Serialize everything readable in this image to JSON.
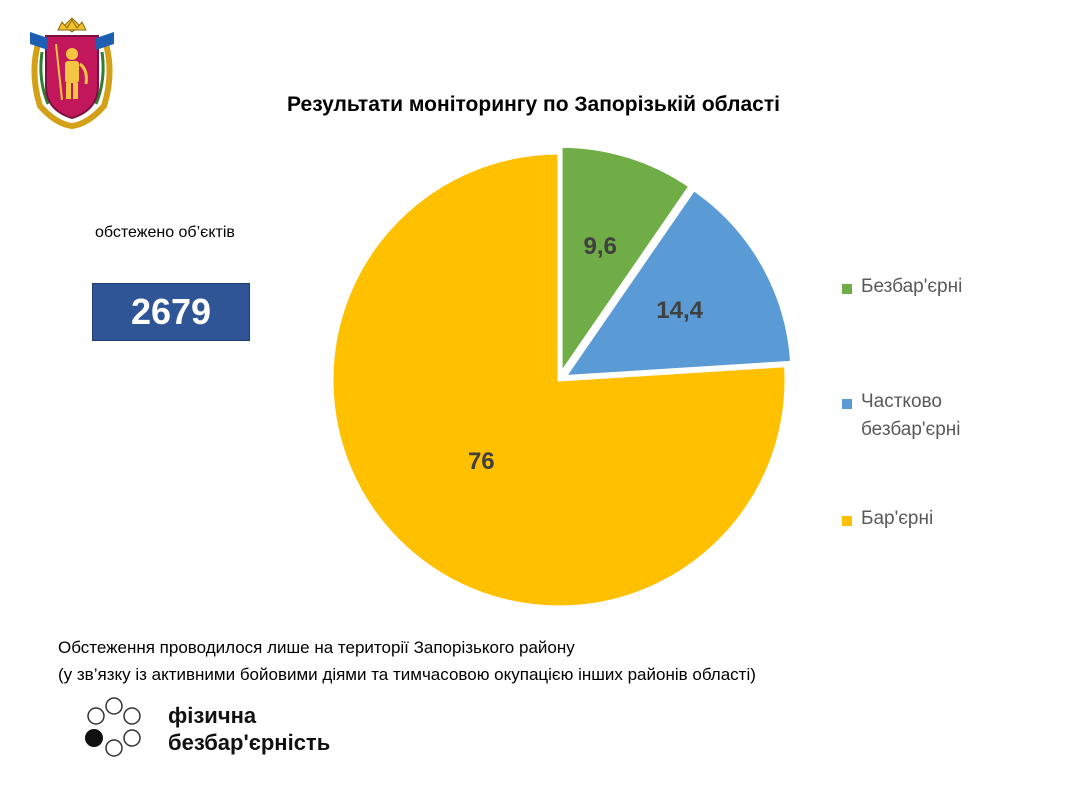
{
  "header": {
    "title": "Результати моніторингу по Запорізькій області"
  },
  "summary": {
    "label": "обстежено об’єктів",
    "value": "2679"
  },
  "chart_data": {
    "type": "pie",
    "title": "Результати моніторингу по Запорізькій області",
    "slices": [
      {
        "name": "Безбар'єрні",
        "value": 9.6,
        "label": "9,6",
        "color": "#70ad47"
      },
      {
        "name": "Частково безбар'єрні",
        "value": 14.4,
        "label": "14,4",
        "color": "#5b9bd5"
      },
      {
        "name": "Бар'єрні",
        "value": 76,
        "label": "76",
        "color": "#ffc000"
      }
    ],
    "legend": {
      "position": "right"
    }
  },
  "legend_items": [
    {
      "label": "Безбар'єрні",
      "color": "#70ad47"
    },
    {
      "label": "Частково безбар'єрні",
      "color": "#5b9bd5"
    },
    {
      "label": "Бар'єрні",
      "color": "#ffc000"
    }
  ],
  "footer": {
    "note_line1": "Обстеження проводилося лише на території  Запорізького району",
    "note_line2": "(у зв’язку із активними бойовими діями та тимчасовою окупацією інших районів області)"
  },
  "brand": {
    "line1": "фізична",
    "line2": "безбар'єрність",
    "logo_icon": "circles-logo-icon"
  },
  "coat_of_arms": {
    "icon": "zaporizhzhia-coat-of-arms-icon"
  }
}
